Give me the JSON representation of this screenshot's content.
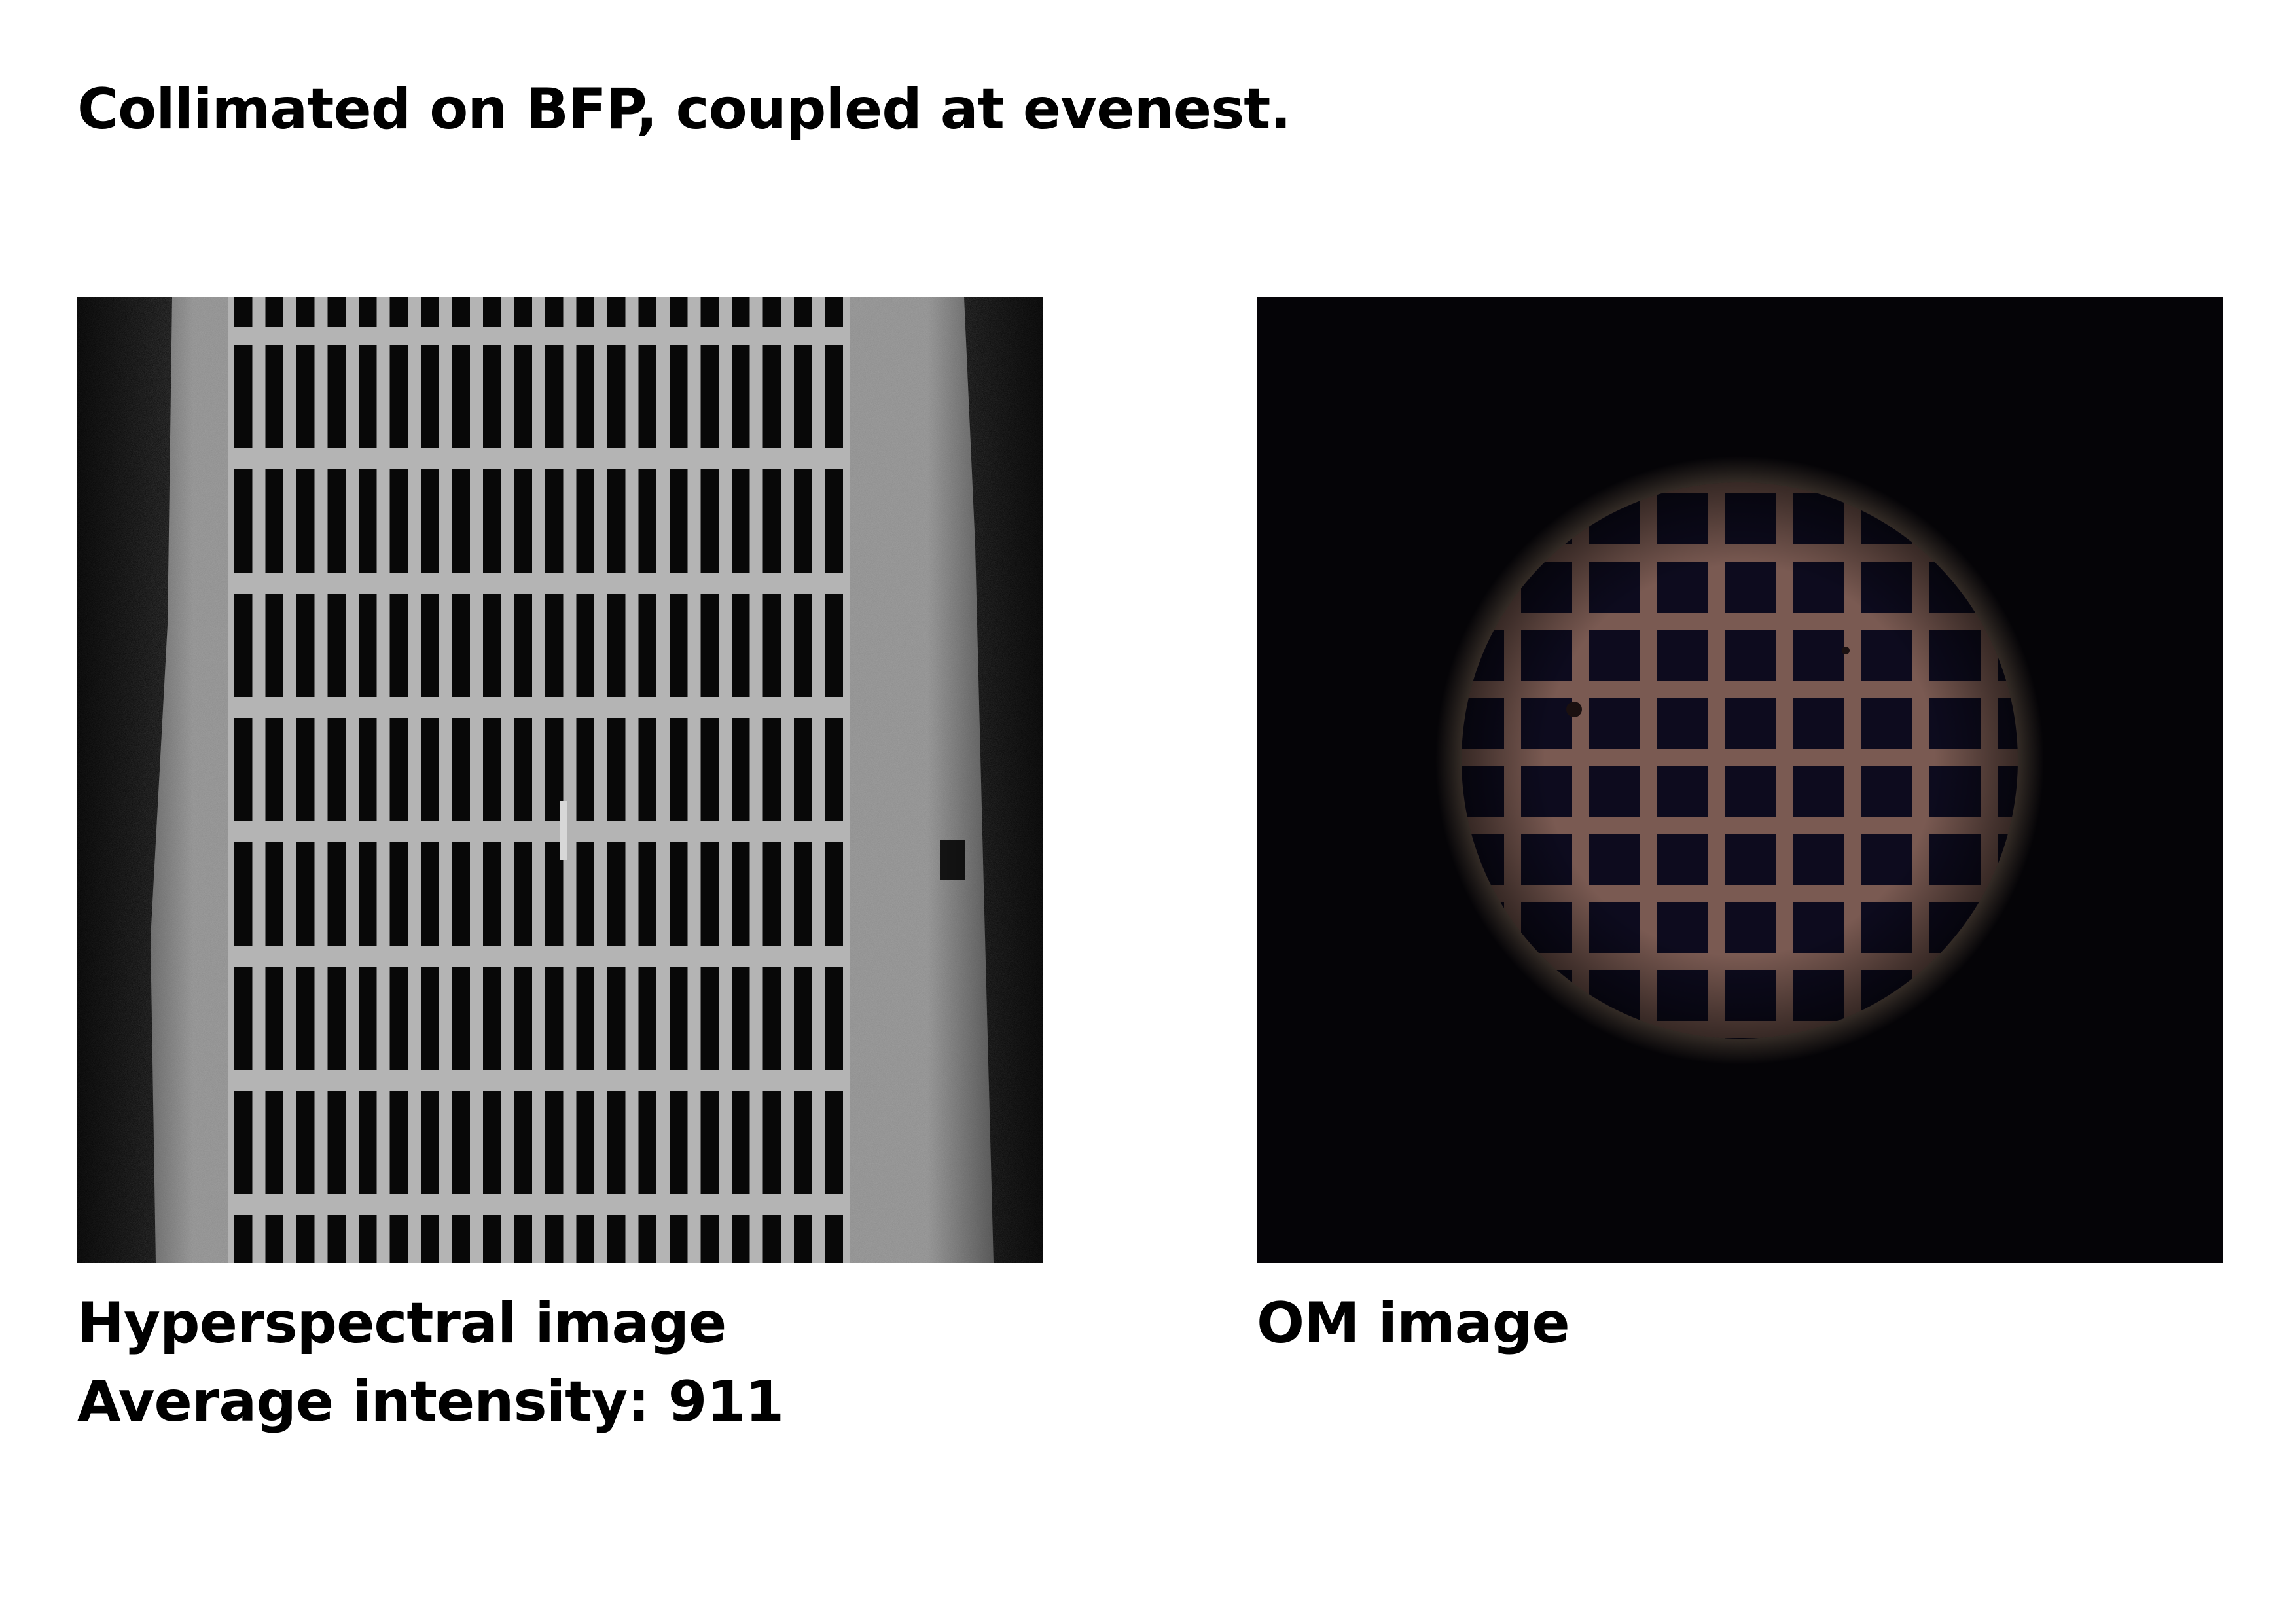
{
  "title": "Collimated on BFP, coupled at evenest.",
  "left_panel": {
    "caption_line1": "Hyperspectral image",
    "caption_line2": "Average intensity: 911",
    "image_desc": "grayscale hyperspectral image of a rectangular grid mesh",
    "grid": {
      "columns": 20,
      "rows": 8
    },
    "colors": {
      "background": "#0c0c0c",
      "frame": "#8c8c8c",
      "bars": "#b4b4b4",
      "holes": "#080808"
    }
  },
  "right_panel": {
    "caption": "OM image",
    "image_desc": "optical microscope image of a square grid inside a circular illuminated field",
    "grid": {
      "columns": 7,
      "rows": 8
    },
    "colors": {
      "background": "#050407",
      "bars": "#7a5a52",
      "holes": "#0d0b1e",
      "halo": "#b69a7c"
    }
  }
}
